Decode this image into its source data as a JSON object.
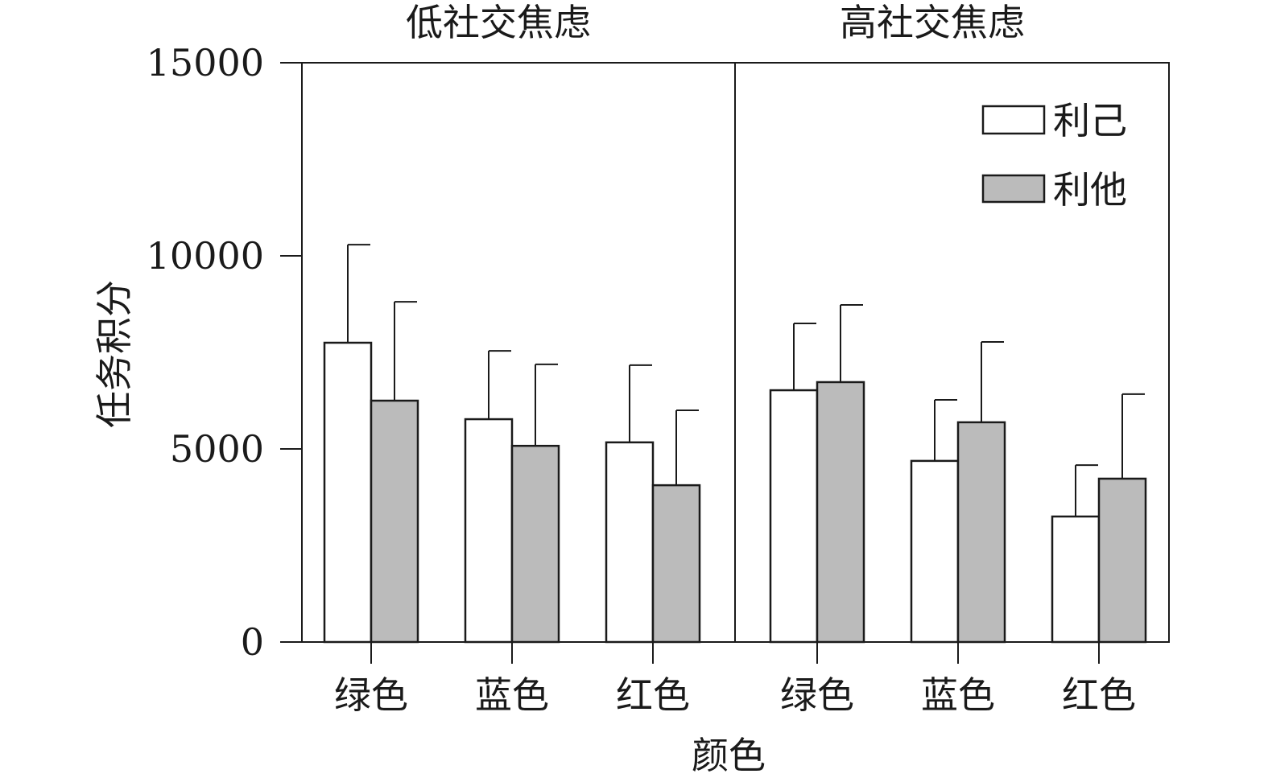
{
  "chart_data": {
    "type": "bar",
    "ylabel": "任务积分",
    "xlabel": "颜色",
    "ylim": [
      0,
      15000
    ],
    "yticks": [
      0,
      5000,
      10000,
      15000
    ],
    "ytick_labels": [
      "0",
      "5000",
      "10000",
      "15000"
    ],
    "legend_position": "top-right",
    "colors": {
      "利己": "#ffffff",
      "利他": "#bbbbbb",
      "stroke": "#1a1a1a"
    },
    "panels": [
      {
        "title": "低社交焦虑",
        "categories": [
          "绿色",
          "蓝色",
          "红色"
        ],
        "series": [
          {
            "name": "利己",
            "values": [
              7750,
              5770,
              5170
            ],
            "error": [
              2540,
              1770,
              2000
            ]
          },
          {
            "name": "利他",
            "values": [
              6250,
              5080,
              4060
            ],
            "error": [
              2560,
              2110,
              1940
            ]
          }
        ]
      },
      {
        "title": "高社交焦虑",
        "categories": [
          "绿色",
          "蓝色",
          "红色"
        ],
        "series": [
          {
            "name": "利己",
            "values": [
              6520,
              4690,
              3250
            ],
            "error": [
              1730,
              1580,
              1330
            ]
          },
          {
            "name": "利他",
            "values": [
              6730,
              5690,
              4230
            ],
            "error": [
              2000,
              2080,
              2190
            ]
          }
        ]
      }
    ]
  }
}
